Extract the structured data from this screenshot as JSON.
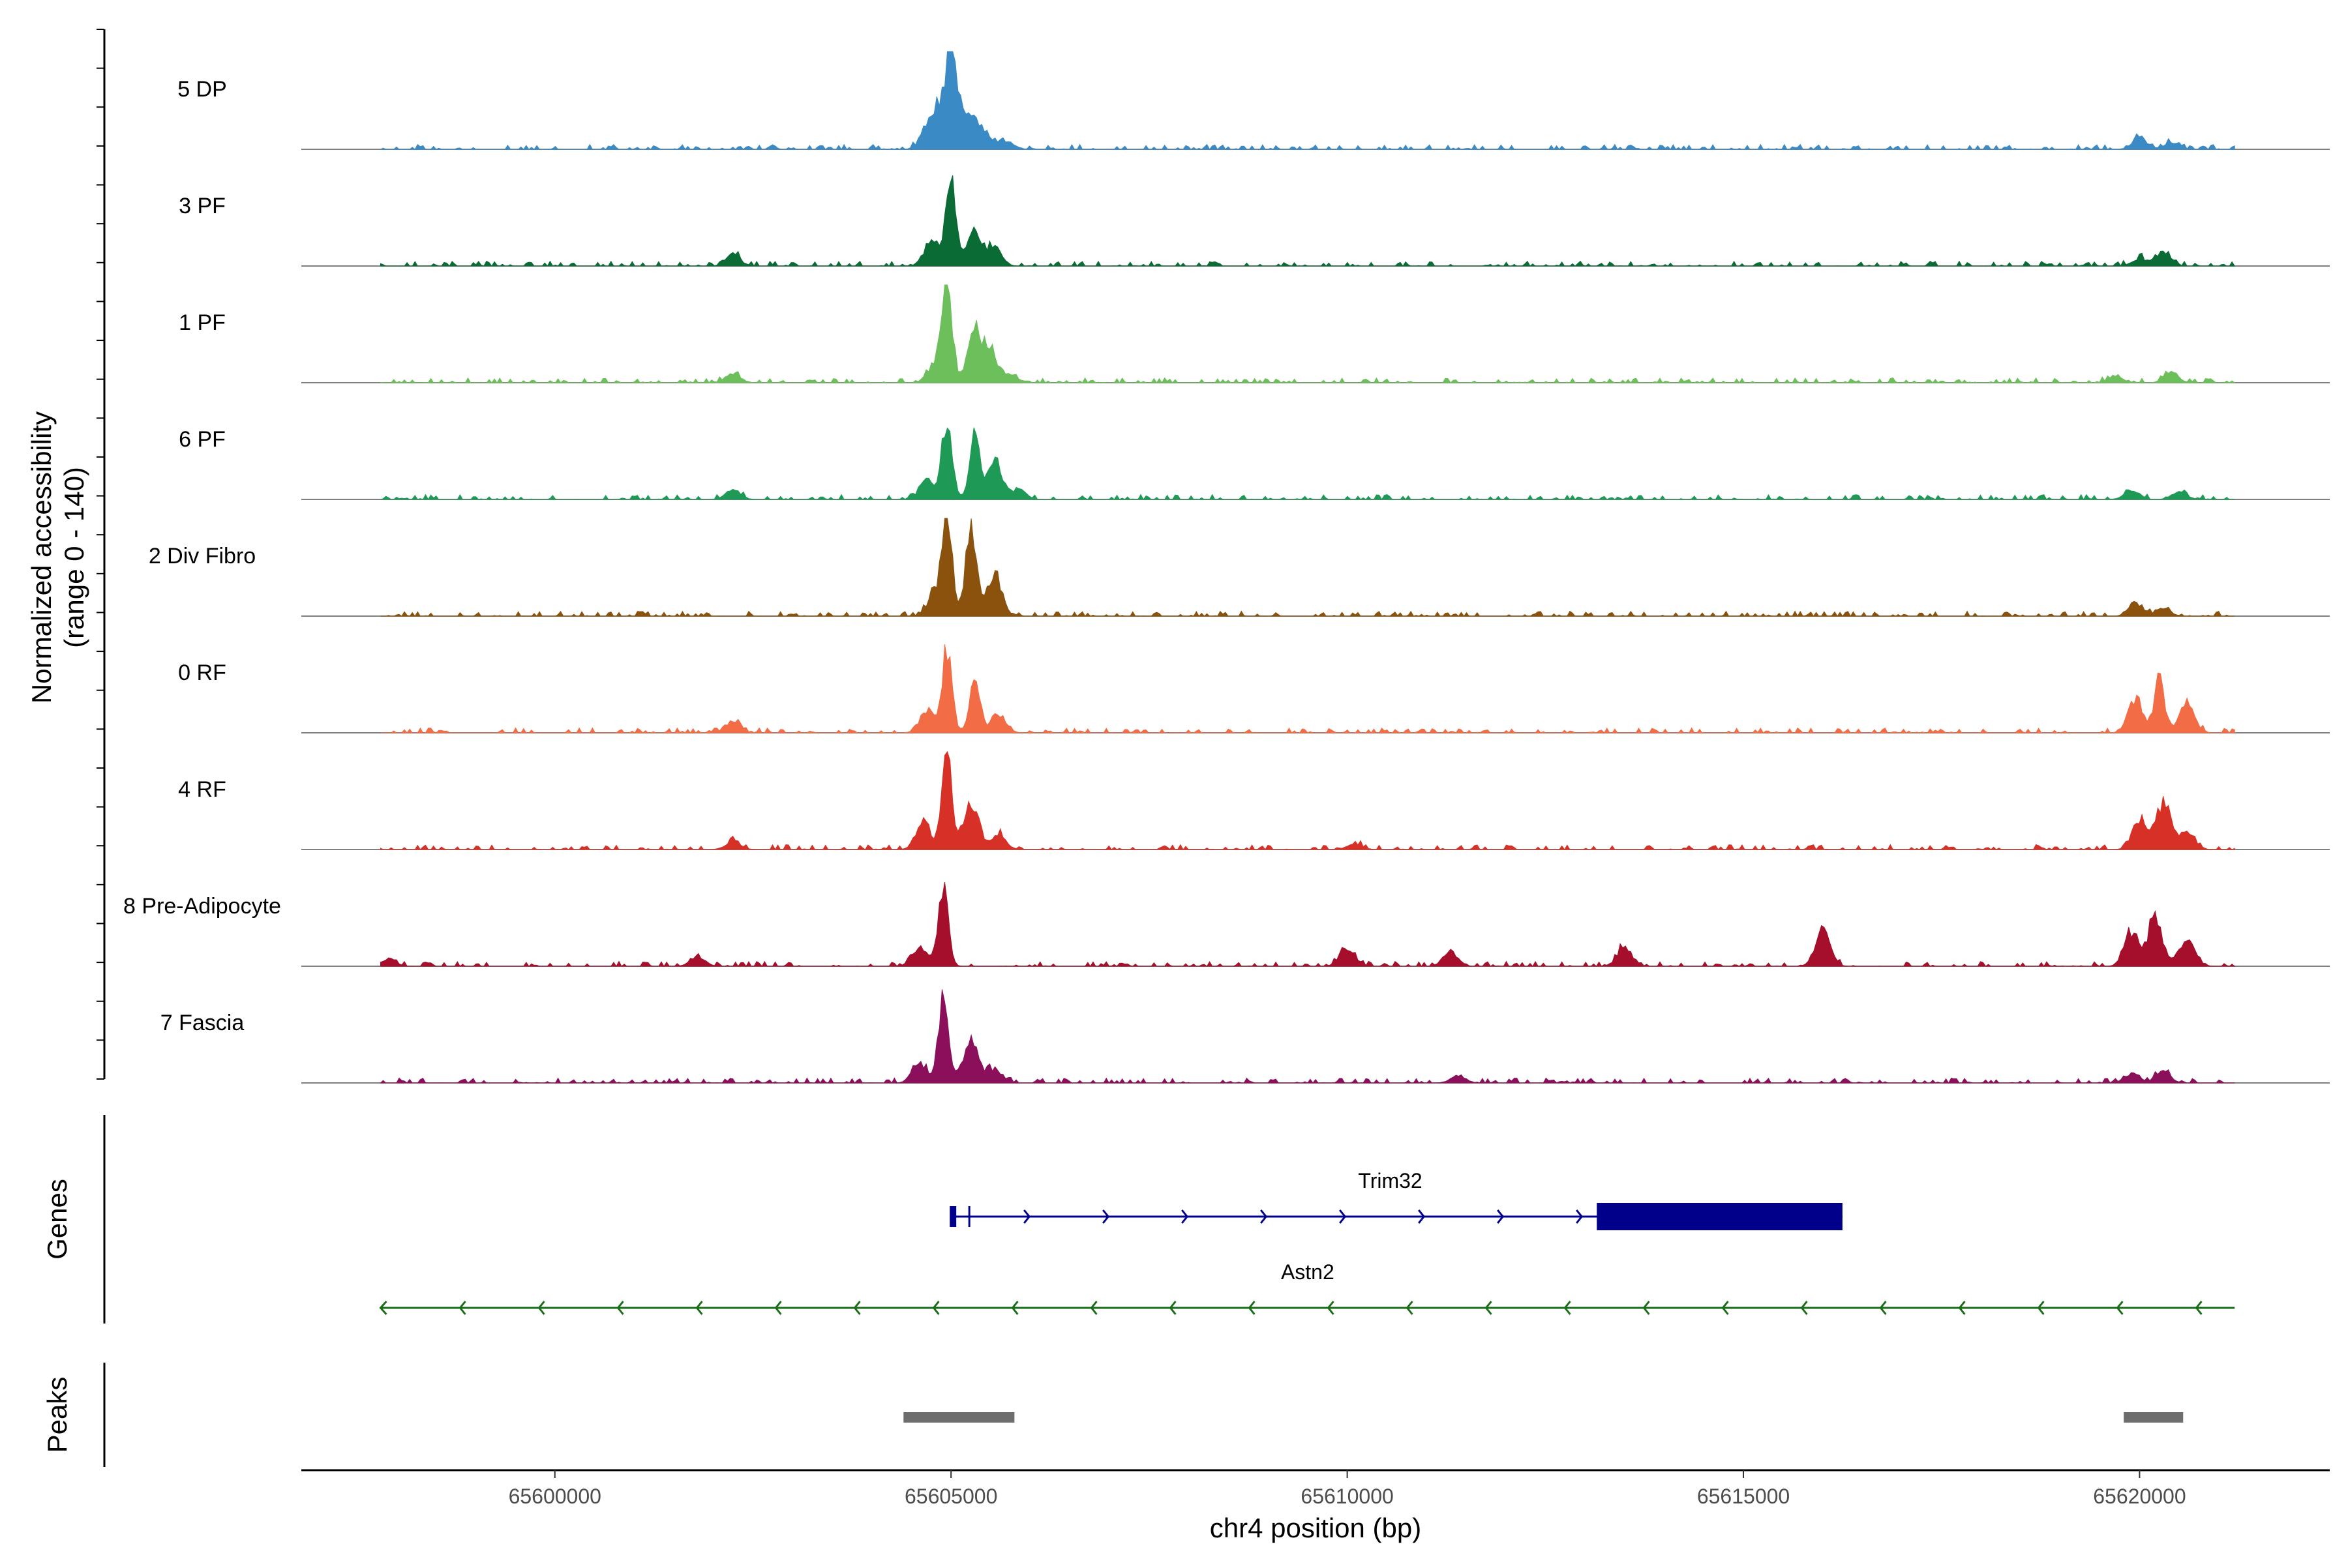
{
  "chart_data": {
    "type": "area",
    "title": "",
    "xlabel": "chr4 position (bp)",
    "ylabel_line1": "Normalized accessibility",
    "ylabel_line2": "(range 0 - 140)",
    "ylim": [
      0,
      140
    ],
    "xlim": [
      65596800,
      65622400
    ],
    "x_ticks": [
      {
        "value": 65600000,
        "label": "65600000"
      },
      {
        "value": 65605000,
        "label": "65605000"
      },
      {
        "value": 65610000,
        "label": "65610000"
      },
      {
        "value": 65615000,
        "label": "65615000"
      },
      {
        "value": 65620000,
        "label": "65620000"
      }
    ],
    "series": [
      {
        "name": "5 DP",
        "color": "#3a8ac6",
        "peaks": [
          [
            65604700,
            0.2
          ],
          [
            65604850,
            0.35
          ],
          [
            65605000,
            1.0
          ],
          [
            65605200,
            0.4
          ],
          [
            65605400,
            0.2
          ],
          [
            65605700,
            0.08
          ],
          [
            65620000,
            0.12
          ],
          [
            65620400,
            0.06
          ]
        ]
      },
      {
        "name": "3 PF",
        "color": "#0b6b35",
        "peaks": [
          [
            65602250,
            0.12
          ],
          [
            65604750,
            0.25
          ],
          [
            65605000,
            0.9
          ],
          [
            65605300,
            0.35
          ],
          [
            65605550,
            0.18
          ],
          [
            65620300,
            0.15
          ],
          [
            65620000,
            0.08
          ]
        ]
      },
      {
        "name": "1 PF",
        "color": "#6cbf5b",
        "peaks": [
          [
            65602250,
            0.1
          ],
          [
            65604800,
            0.2
          ],
          [
            65604950,
            1.0
          ],
          [
            65605300,
            0.5
          ],
          [
            65605500,
            0.3
          ],
          [
            65605750,
            0.08
          ],
          [
            65619700,
            0.06
          ],
          [
            65620400,
            0.1
          ]
        ]
      },
      {
        "name": "6 PF",
        "color": "#1f9a56",
        "peaks": [
          [
            65602250,
            0.1
          ],
          [
            65604700,
            0.2
          ],
          [
            65604950,
            0.85
          ],
          [
            65605300,
            0.7
          ],
          [
            65605550,
            0.4
          ],
          [
            65605850,
            0.1
          ],
          [
            65619900,
            0.1
          ],
          [
            65620500,
            0.08
          ]
        ]
      },
      {
        "name": "2 Div Fibro",
        "color": "#8b520e",
        "peaks": [
          [
            65604800,
            0.25
          ],
          [
            65604950,
            1.0
          ],
          [
            65605250,
            1.0
          ],
          [
            65605550,
            0.45
          ],
          [
            65619950,
            0.12
          ],
          [
            65620300,
            0.08
          ]
        ]
      },
      {
        "name": "0 RF",
        "color": "#f26c45",
        "peaks": [
          [
            65602250,
            0.12
          ],
          [
            65604700,
            0.25
          ],
          [
            65604950,
            0.9
          ],
          [
            65605300,
            0.6
          ],
          [
            65605600,
            0.2
          ],
          [
            65619950,
            0.35
          ],
          [
            65620250,
            0.55
          ],
          [
            65620600,
            0.3
          ]
        ]
      },
      {
        "name": "4 RF",
        "color": "#d73027",
        "peaks": [
          [
            65602250,
            0.08
          ],
          [
            65604650,
            0.3
          ],
          [
            65604950,
            1.0
          ],
          [
            65605250,
            0.5
          ],
          [
            65605600,
            0.15
          ],
          [
            65610100,
            0.06
          ],
          [
            65620000,
            0.3
          ],
          [
            65620300,
            0.5
          ],
          [
            65620600,
            0.2
          ]
        ]
      },
      {
        "name": "8 Pre-Adipocyte",
        "color": "#a50f2b",
        "peaks": [
          [
            65597900,
            0.08
          ],
          [
            65601800,
            0.1
          ],
          [
            65604600,
            0.2
          ],
          [
            65604900,
            0.8
          ],
          [
            65610000,
            0.2
          ],
          [
            65611300,
            0.15
          ],
          [
            65613500,
            0.2
          ],
          [
            65616000,
            0.4
          ],
          [
            65619900,
            0.35
          ],
          [
            65620200,
            0.5
          ],
          [
            65620600,
            0.3
          ]
        ]
      },
      {
        "name": "7 Fascia",
        "color": "#8b0f5a",
        "peaks": [
          [
            65604600,
            0.2
          ],
          [
            65604900,
            0.9
          ],
          [
            65605250,
            0.45
          ],
          [
            65605550,
            0.15
          ],
          [
            65611400,
            0.08
          ],
          [
            65619900,
            0.1
          ],
          [
            65620300,
            0.12
          ]
        ]
      }
    ],
    "genes": [
      {
        "name": "Trim32",
        "color": "#00008b",
        "start": 65605000,
        "end": 65616250,
        "strand": "+",
        "thick_start": 65613150,
        "thick_end": 65616250
      },
      {
        "name": "Astn2",
        "color": "#1a6e1a",
        "start": 65597800,
        "end": 65621200,
        "strand": "-"
      }
    ],
    "peaks": [
      {
        "start": 65604400,
        "end": 65605800
      },
      {
        "start": 65619800,
        "end": 65620550
      }
    ],
    "panel_titles": {
      "genes": "Genes",
      "peaks": "Peaks"
    }
  }
}
